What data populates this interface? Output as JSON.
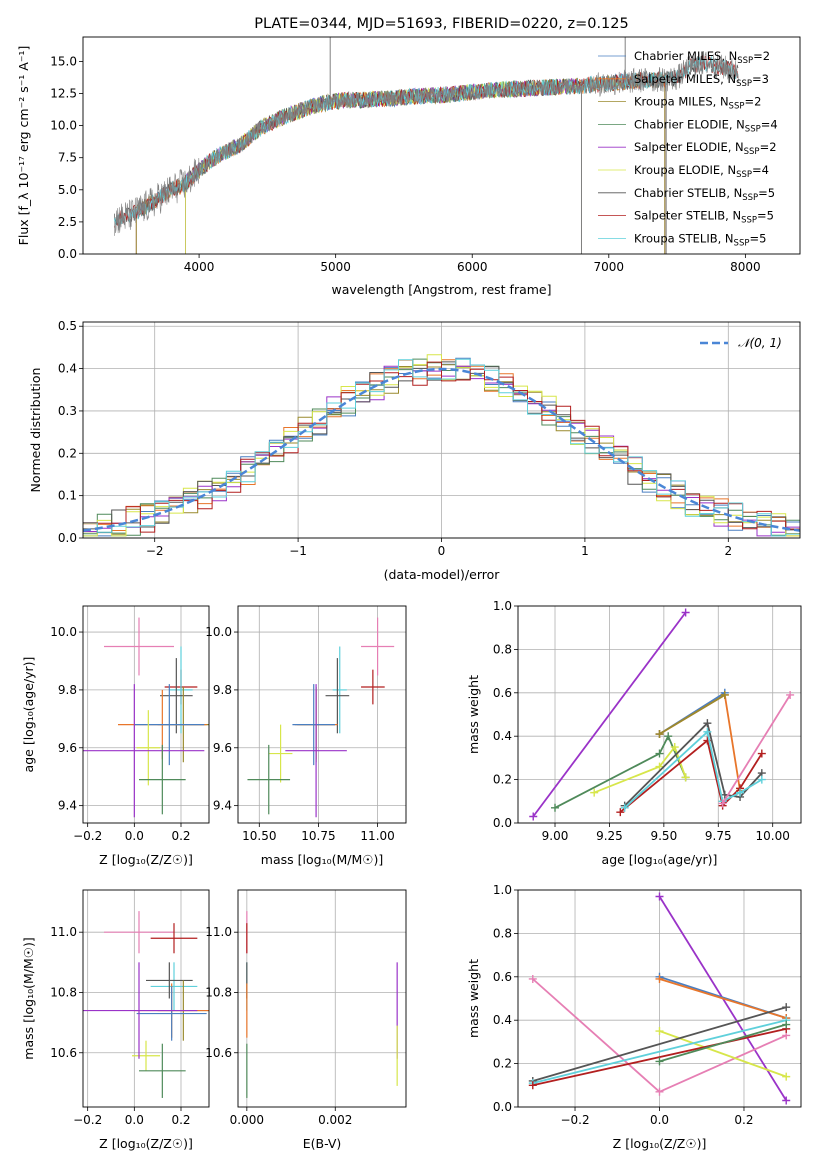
{
  "colors": {
    "Chabrier MILES": "#4a7fc1",
    "Salpeter MILES": "#e8762b",
    "Kroupa MILES": "#9a8a2e",
    "Chabrier ELODIE": "#4f8a5a",
    "Salpeter ELODIE": "#9a33c8",
    "Kroupa ELODIE": "#d7e64a",
    "Chabrier STELIB": "#555555",
    "Salpeter STELIB": "#b21f1f",
    "Kroupa STELIB": "#5fd0db",
    "Pink": "#e67fb4",
    "gaussian": "#4a86d6",
    "grid": "#b0b0b0"
  },
  "chart_data": [
    {
      "id": "spectrum",
      "type": "line",
      "title": "PLATE=0344, MJD=51693, FIBERID=0220, z=0.125",
      "xlabel": "wavelength [Angstrom, rest frame]",
      "ylabel": "Flux [f_λ 10⁻¹⁷ erg cm⁻² s⁻¹ A⁻¹]",
      "xlim": [
        3150,
        8400
      ],
      "ylim": [
        0,
        16.9
      ],
      "xticks": [
        "4000",
        "5000",
        "6000",
        "7000",
        "8000"
      ],
      "xtick_values": [
        4000,
        5000,
        6000,
        7000,
        8000
      ],
      "yticks": [
        "0.0",
        "2.5",
        "5.0",
        "7.5",
        "10.0",
        "12.5",
        "15.0"
      ],
      "ytick_values": [
        0,
        2.5,
        5,
        7.5,
        10,
        12.5,
        15
      ],
      "grid": false,
      "legend_position": "top-right",
      "legend": [
        {
          "label": "Chabrier MILES, N",
          "sub": "SSP",
          "tail": "=2",
          "color": "Chabrier MILES"
        },
        {
          "label": "Salpeter MILES, N",
          "sub": "SSP",
          "tail": "=3",
          "color": "Salpeter MILES"
        },
        {
          "label": "Kroupa MILES, N",
          "sub": "SSP",
          "tail": "=2",
          "color": "Kroupa MILES"
        },
        {
          "label": "Chabrier ELODIE, N",
          "sub": "SSP",
          "tail": "=4",
          "color": "Chabrier ELODIE"
        },
        {
          "label": "Salpeter ELODIE, N",
          "sub": "SSP",
          "tail": "=2",
          "color": "Salpeter ELODIE"
        },
        {
          "label": "Kroupa ELODIE, N",
          "sub": "SSP",
          "tail": "=4",
          "color": "Kroupa ELODIE"
        },
        {
          "label": "Chabrier STELIB, N",
          "sub": "SSP",
          "tail": "=5",
          "color": "Chabrier STELIB"
        },
        {
          "label": "Salpeter STELIB, N",
          "sub": "SSP",
          "tail": "=5",
          "color": "Salpeter STELIB"
        },
        {
          "label": "Kroupa STELIB, N",
          "sub": "SSP",
          "tail": "=5",
          "color": "Kroupa STELIB"
        }
      ],
      "continuum": [
        [
          3380,
          2.7
        ],
        [
          3500,
          3.0
        ],
        [
          3600,
          3.6
        ],
        [
          3700,
          4.3
        ],
        [
          3800,
          5.0
        ],
        [
          3900,
          5.5
        ],
        [
          4000,
          6.5
        ],
        [
          4100,
          7.4
        ],
        [
          4200,
          8.0
        ],
        [
          4300,
          8.5
        ],
        [
          4400,
          9.4
        ],
        [
          4500,
          10.1
        ],
        [
          4600,
          10.6
        ],
        [
          4700,
          11.0
        ],
        [
          4800,
          11.4
        ],
        [
          4900,
          11.7
        ],
        [
          5000,
          11.9
        ],
        [
          5100,
          12.0
        ],
        [
          5200,
          12.0
        ],
        [
          5400,
          12.1
        ],
        [
          5600,
          12.3
        ],
        [
          5800,
          12.4
        ],
        [
          6000,
          12.6
        ],
        [
          6200,
          12.8
        ],
        [
          6400,
          12.9
        ],
        [
          6600,
          13.0
        ],
        [
          6800,
          13.1
        ],
        [
          7000,
          13.3
        ],
        [
          7200,
          13.5
        ],
        [
          7400,
          13.6
        ],
        [
          7500,
          13.7
        ],
        [
          7600,
          14.6
        ],
        [
          7700,
          14.9
        ],
        [
          7850,
          14.5
        ],
        [
          7950,
          14.2
        ]
      ],
      "spikes": [
        [
          4960,
          18
        ],
        [
          6800,
          0
        ],
        [
          7420,
          0
        ],
        [
          7120,
          17.5
        ]
      ]
    },
    {
      "id": "residuals",
      "type": "line",
      "xlabel": "(data-model)/error",
      "ylabel": "Normed distribution",
      "xlim": [
        -2.5,
        2.5
      ],
      "ylim": [
        0,
        0.51
      ],
      "xticks": [
        "−2",
        "−1",
        "0",
        "1",
        "2"
      ],
      "xtick_values": [
        -2,
        -1,
        0,
        1,
        2
      ],
      "yticks": [
        "0.0",
        "0.1",
        "0.2",
        "0.3",
        "0.4",
        "0.5"
      ],
      "ytick_values": [
        0,
        0.1,
        0.2,
        0.3,
        0.4,
        0.5
      ],
      "grid": true,
      "legend_position": "top-right",
      "legend_label": "𝒩(0, 1)",
      "series": [
        {
          "name": "gaussian",
          "mu": 0,
          "sigma": 1
        }
      ]
    },
    {
      "id": "age-vs-Z",
      "type": "scatter",
      "xlabel": "Z [log₁₀(Z/Z☉)]",
      "ylabel": "age  [log₁₀(age/yr)]",
      "xlim": [
        -0.22,
        0.32
      ],
      "ylim": [
        9.34,
        10.09
      ],
      "xticks": [
        "−0.2",
        "0.0",
        "0.2"
      ],
      "xtick_values": [
        -0.2,
        0,
        0.2
      ],
      "yticks": [
        "9.4",
        "9.6",
        "9.8",
        "10.0"
      ],
      "ytick_values": [
        9.4,
        9.6,
        9.8,
        10.0
      ],
      "grid": true,
      "points": [
        {
          "c": "Pink",
          "x": 0.02,
          "y": 9.95,
          "xe": 0.15,
          "ye": 0.1
        },
        {
          "c": "Salpeter STELIB",
          "x": 0.2,
          "y": 9.81,
          "xe": 0.07,
          "ye": 0.06
        },
        {
          "c": "Kroupa STELIB",
          "x": 0.2,
          "y": 9.8,
          "xe": 0.05,
          "ye": 0.15
        },
        {
          "c": "Chabrier STELIB",
          "x": 0.18,
          "y": 9.78,
          "xe": 0.07,
          "ye": 0.13
        },
        {
          "c": "Kroupa MILES",
          "x": 0.21,
          "y": 9.68,
          "xe": 0.11,
          "ye": 0.13
        },
        {
          "c": "Salpeter MILES",
          "x": 0.12,
          "y": 9.68,
          "xe": 0.19,
          "ye": 0.12
        },
        {
          "c": "Chabrier MILES",
          "x": 0.15,
          "y": 9.68,
          "xe": 0.15,
          "ye": 0.14
        },
        {
          "c": "Kroupa ELODIE",
          "x": 0.06,
          "y": 9.6,
          "xe": 0.05,
          "ye": 0.13
        },
        {
          "c": "Salpeter ELODIE",
          "x": 0.0,
          "y": 9.59,
          "xe": 0.3,
          "ye": 0.23
        },
        {
          "c": "Chabrier ELODIE",
          "x": 0.12,
          "y": 9.49,
          "xe": 0.1,
          "ye": 0.12
        }
      ]
    },
    {
      "id": "age-vs-mass",
      "type": "scatter",
      "xlabel": "mass [log₁₀(M/M☉)]",
      "ylabel": "",
      "xlim": [
        10.41,
        11.12
      ],
      "ylim": [
        9.34,
        10.09
      ],
      "xticks": [
        "10.50",
        "10.75",
        "11.00"
      ],
      "xtick_values": [
        10.5,
        10.75,
        11.0
      ],
      "yticks": [
        "9.4",
        "9.6",
        "9.8",
        "10.0"
      ],
      "ytick_values": [
        9.4,
        9.6,
        9.8,
        10.0
      ],
      "grid": true,
      "points": [
        {
          "c": "Pink",
          "x": 11.0,
          "y": 9.95,
          "xe": 0.07,
          "ye": 0.1
        },
        {
          "c": "Salpeter STELIB",
          "x": 10.98,
          "y": 9.81,
          "xe": 0.05,
          "ye": 0.06
        },
        {
          "c": "Kroupa STELIB",
          "x": 10.84,
          "y": 9.8,
          "xe": 0.03,
          "ye": 0.15
        },
        {
          "c": "Chabrier STELIB",
          "x": 10.83,
          "y": 9.78,
          "xe": 0.05,
          "ye": 0.13
        },
        {
          "c": "Kroupa MILES",
          "x": 10.74,
          "y": 9.68,
          "xe": 0.08,
          "ye": 0.13
        },
        {
          "c": "Salpeter MILES",
          "x": 10.74,
          "y": 9.68,
          "xe": 0.09,
          "ye": 0.12
        },
        {
          "c": "Chabrier MILES",
          "x": 10.73,
          "y": 9.68,
          "xe": 0.09,
          "ye": 0.14
        },
        {
          "c": "Kroupa ELODIE",
          "x": 10.59,
          "y": 9.58,
          "xe": 0.05,
          "ye": 0.1
        },
        {
          "c": "Salpeter ELODIE",
          "x": 10.74,
          "y": 9.59,
          "xe": 0.13,
          "ye": 0.23
        },
        {
          "c": "Chabrier ELODIE",
          "x": 10.54,
          "y": 9.49,
          "xe": 0.09,
          "ye": 0.12
        }
      ]
    },
    {
      "id": "mass-weight-vs-age",
      "type": "line",
      "xlabel": "age  [log₁₀(age/yr)]",
      "ylabel": "mass weight",
      "xlim": [
        8.83,
        10.13
      ],
      "ylim": [
        0,
        1.0
      ],
      "xticks": [
        "9.00",
        "9.25",
        "9.50",
        "9.75",
        "10.00"
      ],
      "xtick_values": [
        9.0,
        9.25,
        9.5,
        9.75,
        10.0
      ],
      "yticks": [
        "0.0",
        "0.2",
        "0.4",
        "0.6",
        "0.8",
        "1.0"
      ],
      "ytick_values": [
        0,
        0.2,
        0.4,
        0.6,
        0.8,
        1.0
      ],
      "grid": true,
      "series": [
        {
          "c": "Salpeter ELODIE",
          "x": [
            8.9,
            9.6
          ],
          "y": [
            0.03,
            0.97
          ]
        },
        {
          "c": "Chabrier ELODIE",
          "x": [
            9.0,
            9.48,
            9.52,
            9.6
          ],
          "y": [
            0.07,
            0.32,
            0.4,
            0.21
          ]
        },
        {
          "c": "Kroupa ELODIE",
          "x": [
            9.18,
            9.48,
            9.55,
            9.6
          ],
          "y": [
            0.14,
            0.26,
            0.35,
            0.21
          ]
        },
        {
          "c": "Chabrier MILES",
          "x": [
            9.48,
            9.78
          ],
          "y": [
            0.41,
            0.6
          ]
        },
        {
          "c": "Salpeter MILES",
          "x": [
            9.48,
            9.78,
            9.85
          ],
          "y": [
            0.41,
            0.59,
            0.15
          ]
        },
        {
          "c": "Kroupa MILES",
          "x": [
            9.48,
            9.78
          ],
          "y": [
            0.41,
            0.59
          ]
        },
        {
          "c": "Salpeter STELIB",
          "x": [
            9.3,
            9.7,
            9.77,
            9.85,
            9.95
          ],
          "y": [
            0.05,
            0.38,
            0.08,
            0.16,
            0.32
          ]
        },
        {
          "c": "Chabrier STELIB",
          "x": [
            9.32,
            9.7,
            9.78,
            9.85,
            9.95
          ],
          "y": [
            0.08,
            0.46,
            0.13,
            0.12,
            0.23
          ]
        },
        {
          "c": "Kroupa STELIB",
          "x": [
            9.32,
            9.7,
            9.77,
            9.85,
            9.95
          ],
          "y": [
            0.07,
            0.42,
            0.1,
            0.14,
            0.2
          ]
        },
        {
          "c": "Pink",
          "x": [
            9.77,
            10.08
          ],
          "y": [
            0.09,
            0.59
          ]
        }
      ]
    },
    {
      "id": "mass-vs-Z",
      "type": "scatter",
      "xlabel": "Z [log₁₀(Z/Z☉)]",
      "ylabel": "mass [log₁₀(M/M☉)]",
      "xlim": [
        -0.22,
        0.32
      ],
      "ylim": [
        10.42,
        11.14
      ],
      "xticks": [
        "−0.2",
        "0.0",
        "0.2"
      ],
      "xtick_values": [
        -0.2,
        0,
        0.2
      ],
      "yticks": [
        "10.6",
        "10.8",
        "11.0"
      ],
      "ytick_values": [
        10.6,
        10.8,
        11.0
      ],
      "grid": true,
      "points": [
        {
          "c": "Pink",
          "x": 0.02,
          "y": 11.0,
          "xe": 0.15,
          "ye": 0.07
        },
        {
          "c": "Salpeter STELIB",
          "x": 0.17,
          "y": 10.98,
          "xe": 0.1,
          "ye": 0.05
        },
        {
          "c": "Kroupa STELIB",
          "x": 0.17,
          "y": 10.82,
          "xe": 0.1,
          "ye": 0.08
        },
        {
          "c": "Chabrier STELIB",
          "x": 0.15,
          "y": 10.84,
          "xe": 0.1,
          "ye": 0.06
        },
        {
          "c": "Kroupa MILES",
          "x": 0.21,
          "y": 10.74,
          "xe": 0.11,
          "ye": 0.1
        },
        {
          "c": "Salpeter MILES",
          "x": 0.16,
          "y": 10.74,
          "xe": 0.16,
          "ye": 0.09
        },
        {
          "c": "Chabrier MILES",
          "x": 0.16,
          "y": 10.73,
          "xe": 0.15,
          "ye": 0.09
        },
        {
          "c": "Kroupa ELODIE",
          "x": 0.05,
          "y": 10.59,
          "xe": 0.06,
          "ye": 0.05
        },
        {
          "c": "Salpeter ELODIE",
          "x": 0.02,
          "y": 10.74,
          "xe": 0.25,
          "ye": 0.16
        },
        {
          "c": "Chabrier ELODIE",
          "x": 0.12,
          "y": 10.54,
          "xe": 0.1,
          "ye": 0.09
        }
      ]
    },
    {
      "id": "mass-vs-ebv",
      "type": "scatter",
      "xlabel": "E(B-V)",
      "ylabel": "",
      "xlim": [
        -0.0002,
        0.0036
      ],
      "ylim": [
        10.42,
        11.14
      ],
      "xticks": [
        "0.000",
        "0.002"
      ],
      "xtick_values": [
        0,
        0.002
      ],
      "yticks": [
        "10.6",
        "10.8",
        "11.0"
      ],
      "ytick_values": [
        10.6,
        10.8,
        11.0
      ],
      "grid": true,
      "points": [
        {
          "c": "Pink",
          "x": 0.0,
          "y": 11.0,
          "xe": 0,
          "ye": 0.07
        },
        {
          "c": "Salpeter STELIB",
          "x": 0.0,
          "y": 10.98,
          "xe": 0,
          "ye": 0.05
        },
        {
          "c": "Kroupa STELIB",
          "x": 0.0,
          "y": 10.82,
          "xe": 0,
          "ye": 0.08
        },
        {
          "c": "Chabrier STELIB",
          "x": 0.0,
          "y": 10.84,
          "xe": 0,
          "ye": 0.06
        },
        {
          "c": "Salpeter MILES",
          "x": 0.0,
          "y": 10.74,
          "xe": 0,
          "ye": 0.09
        },
        {
          "c": "Chabrier ELODIE",
          "x": 0.0,
          "y": 10.54,
          "xe": 0,
          "ye": 0.09
        },
        {
          "c": "Salpeter ELODIE",
          "x": 0.0034,
          "y": 10.74,
          "xe": 0,
          "ye": 0.16
        },
        {
          "c": "Kroupa ELODIE",
          "x": 0.0034,
          "y": 10.59,
          "xe": 0,
          "ye": 0.1
        }
      ]
    },
    {
      "id": "mass-weight-vs-Z",
      "type": "line",
      "xlabel": "Z [log₁₀(Z/Z☉)]",
      "ylabel": "mass weight",
      "xlim": [
        -0.335,
        0.335
      ],
      "ylim": [
        0,
        1.0
      ],
      "xticks": [
        "−0.2",
        "0.0",
        "0.2"
      ],
      "xtick_values": [
        -0.2,
        0,
        0.2
      ],
      "yticks": [
        "0.0",
        "0.2",
        "0.4",
        "0.6",
        "0.8",
        "1.0"
      ],
      "ytick_values": [
        0,
        0.2,
        0.4,
        0.6,
        0.8,
        1.0
      ],
      "grid": true,
      "series": [
        {
          "c": "Salpeter ELODIE",
          "x": [
            0.0,
            0.3
          ],
          "y": [
            0.97,
            0.03
          ]
        },
        {
          "c": "Pink",
          "x": [
            -0.3,
            0.0,
            0.3
          ],
          "y": [
            0.59,
            0.07,
            0.33
          ]
        },
        {
          "c": "Chabrier MILES",
          "x": [
            0.0,
            0.3
          ],
          "y": [
            0.6,
            0.41
          ]
        },
        {
          "c": "Salpeter MILES",
          "x": [
            0.0,
            0.3
          ],
          "y": [
            0.59,
            0.41
          ]
        },
        {
          "c": "Kroupa ELODIE",
          "x": [
            0.0,
            0.3
          ],
          "y": [
            0.35,
            0.14
          ]
        },
        {
          "c": "Chabrier STELIB",
          "x": [
            -0.3,
            0.3
          ],
          "y": [
            0.12,
            0.46
          ]
        },
        {
          "c": "Kroupa STELIB",
          "x": [
            -0.3,
            0.3
          ],
          "y": [
            0.11,
            0.4
          ]
        },
        {
          "c": "Salpeter STELIB",
          "x": [
            -0.3,
            0.3
          ],
          "y": [
            0.1,
            0.36
          ]
        },
        {
          "c": "Chabrier ELODIE",
          "x": [
            0.0,
            0.3
          ],
          "y": [
            0.21,
            0.38
          ]
        }
      ]
    }
  ]
}
